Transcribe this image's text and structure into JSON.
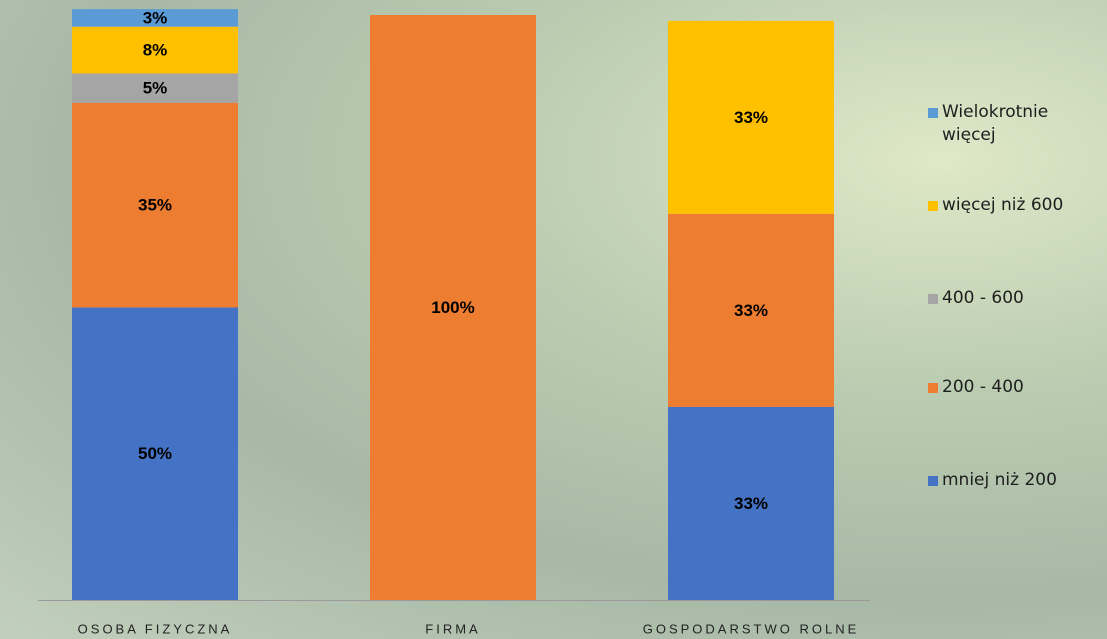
{
  "chart_data": {
    "type": "stacked_bar",
    "categories": [
      "OSOBA FIZYCZNA",
      "FIRMA",
      "GOSPODARSTWO ROLNE"
    ],
    "series": [
      {
        "name": "mniej niż 200",
        "color": "#4472c4",
        "values": [
          50,
          0,
          33
        ],
        "value_labels": [
          "50%",
          null,
          "33%"
        ]
      },
      {
        "name": "200 - 400",
        "color": "#ed7d31",
        "values": [
          35,
          100,
          33
        ],
        "value_labels": [
          "35%",
          "100%",
          "33%"
        ]
      },
      {
        "name": "400 - 600",
        "color": "#a5a5a5",
        "values": [
          5,
          0,
          0
        ],
        "value_labels": [
          "5%",
          null,
          null
        ]
      },
      {
        "name": "więcej niż 600",
        "color": "#ffc000",
        "values": [
          8,
          0,
          33
        ],
        "value_labels": [
          "8%",
          null,
          "33%"
        ]
      },
      {
        "name": "Wielokrotnie więcej",
        "color": "#5b9bd5",
        "values": [
          3,
          0,
          0
        ],
        "value_labels": [
          "3%",
          null,
          null
        ]
      }
    ],
    "ylim": [
      0,
      100
    ]
  }
}
